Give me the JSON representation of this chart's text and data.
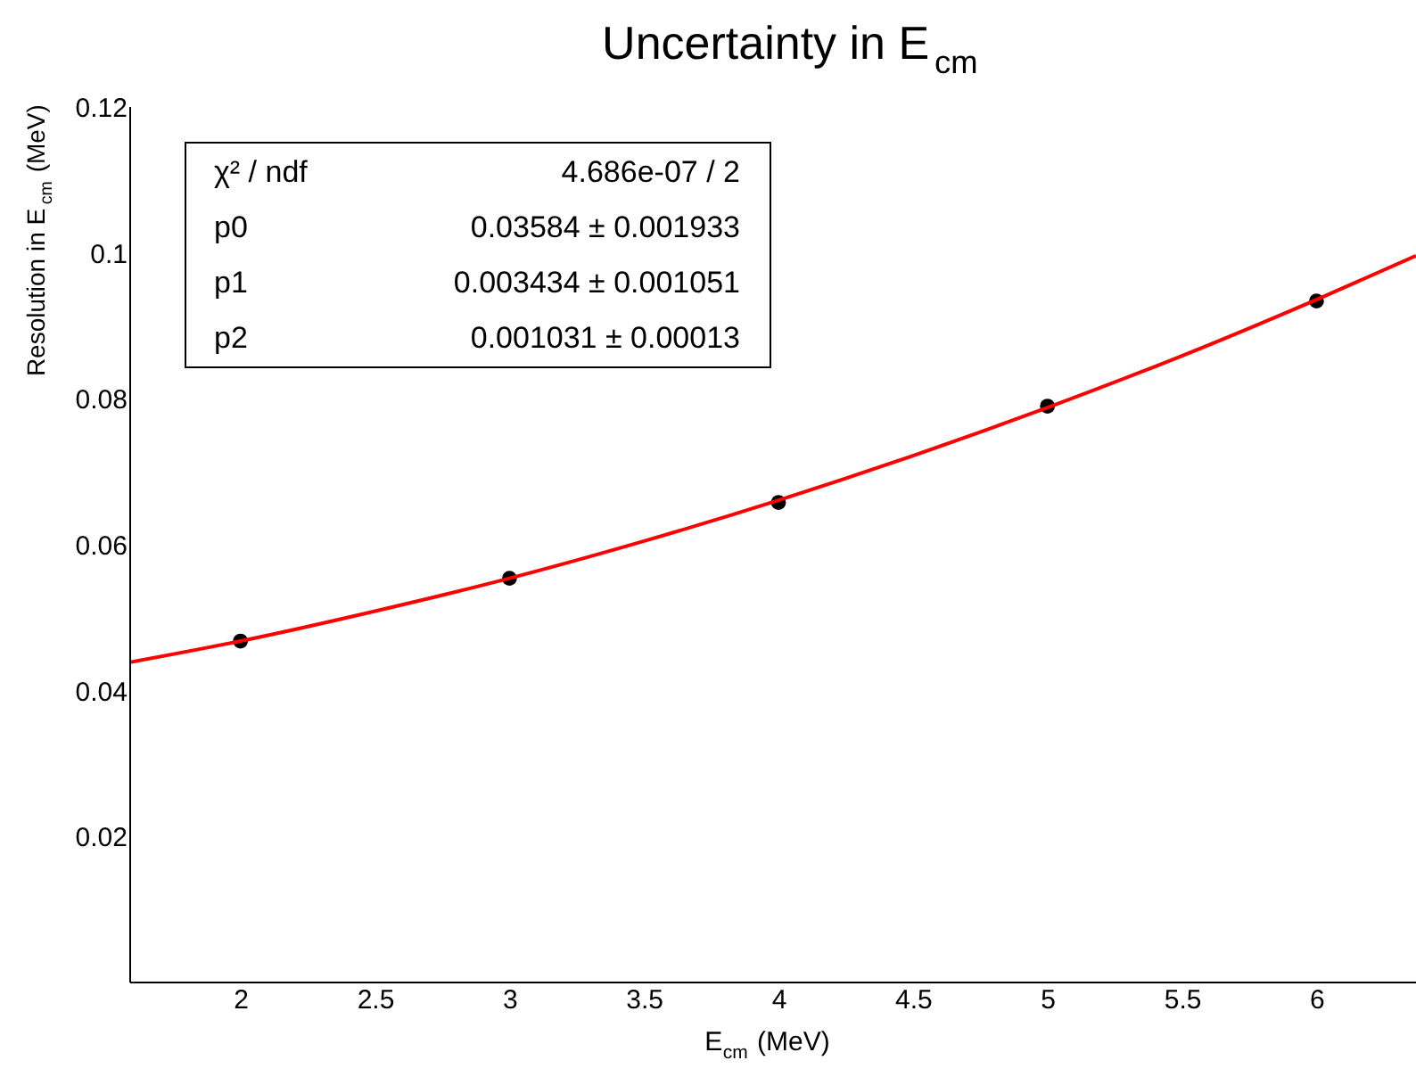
{
  "chart_data": {
    "type": "scatter",
    "title": "Uncertainty in E$_{cm}$",
    "xlabel": "E$_{cm}$ (MeV)",
    "ylabel": "Resolution in E$_{cm}$ (MeV)",
    "series": [
      {
        "color": "#000000",
        "marker": "circle",
        "x": [
          2,
          3,
          4,
          5,
          6
        ],
        "values": [
          0.0468,
          0.0554,
          0.0658,
          0.079,
          0.0934
        ]
      },
      {
        "type": "line",
        "color": "#ff0000",
        "marker": "none",
        "line_style": "solid",
        "x": [
          1.59,
          2,
          2.5,
          3,
          3.5,
          4,
          4.5,
          5,
          5.5,
          6,
          6.37
        ],
        "values": [
          0.0439,
          0.0468,
          0.0509,
          0.0554,
          0.0605,
          0.0661,
          0.0722,
          0.0788,
          0.0859,
          0.0936,
          0.0996
        ]
      }
    ],
    "xlim": [
      1.59,
      6.37
    ],
    "xticks": [
      2,
      2.5,
      3,
      3.5,
      4,
      4.5,
      5,
      5.5,
      6
    ],
    "ylim": [
      0,
      0.12
    ],
    "yticks": [
      0.02,
      0.04,
      0.06,
      0.08,
      0.1,
      0.12
    ],
    "grid": false,
    "annotations": [
      "χ² / ndf",
      "4.686e-07 / 2",
      "p0",
      "0.03584 ± 0.001933",
      "p1",
      "0.003434 ± 0.001051",
      "p2",
      "0.001031 ± 0.00013"
    ]
  }
}
